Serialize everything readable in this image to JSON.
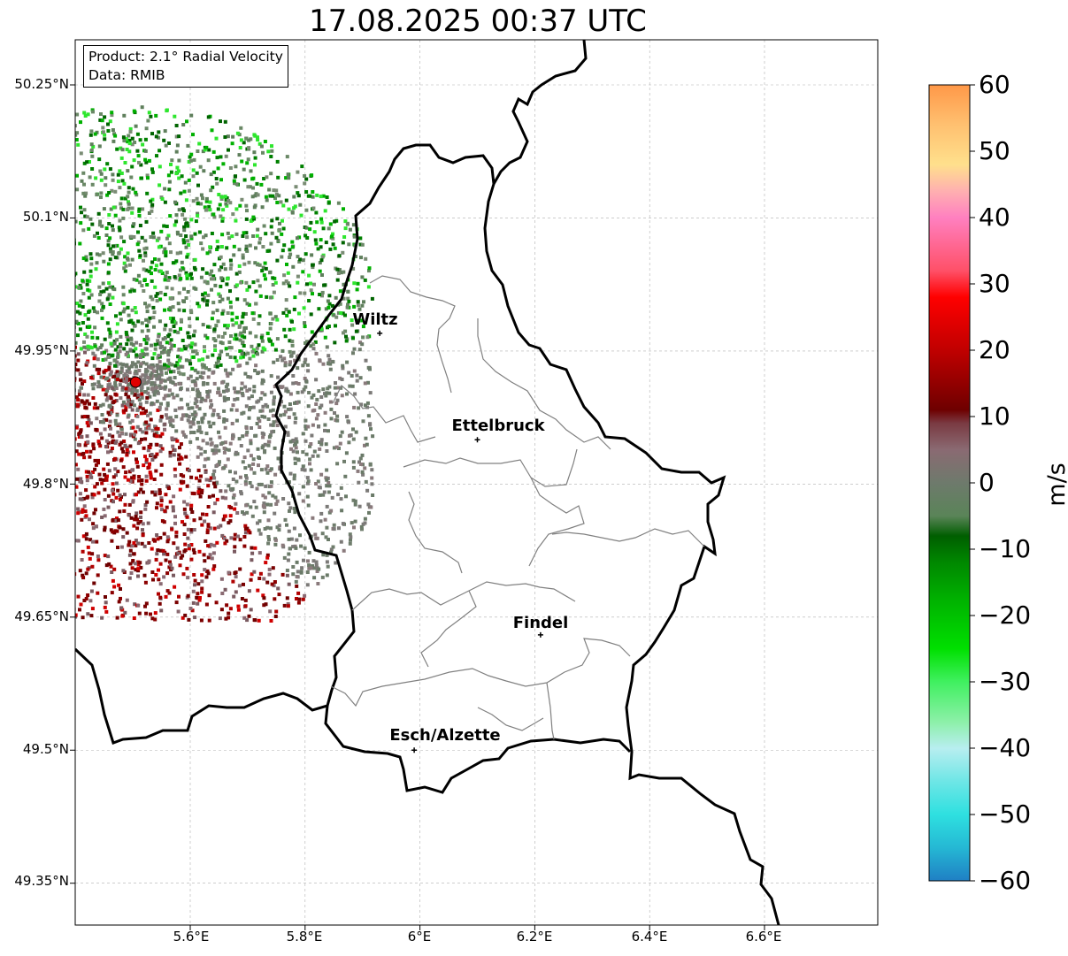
{
  "title": "17.08.2025 00:37 UTC",
  "info_box": {
    "product": "Product: 2.1° Radial Velocity",
    "data": "Data: RMIB"
  },
  "lat_labels": [
    "50.25°N",
    "50.1°N",
    "49.95°N",
    "49.8°N",
    "49.65°N",
    "49.5°N",
    "49.35°N"
  ],
  "lon_labels": [
    "5.6°E",
    "5.8°E",
    "6°E",
    "6.2°E",
    "6.4°E",
    "6.6°E"
  ],
  "cities": [
    {
      "name": "Wiltz",
      "lon": 5.93,
      "lat": 49.97
    },
    {
      "name": "Ettelbruck",
      "lon": 6.1,
      "lat": 49.85
    },
    {
      "name": "Findel",
      "lon": 6.21,
      "lat": 49.63
    },
    {
      "name": "Esch/Alzette",
      "lon": 5.99,
      "lat": 49.5
    }
  ],
  "radar_site": {
    "lon": 5.505,
    "lat": 49.915
  },
  "colorbar": {
    "unit": "m/s",
    "min": -60,
    "max": 60,
    "ticks": [
      "60",
      "50",
      "40",
      "30",
      "20",
      "10",
      "0",
      "−10",
      "−20",
      "−30",
      "−40",
      "−50",
      "−60"
    ],
    "stops": [
      [
        "#1f7fc4",
        -60
      ],
      [
        "#25b8d4",
        -55
      ],
      [
        "#2ee0e0",
        -50
      ],
      [
        "#6ee6e6",
        -45
      ],
      [
        "#b8eef0",
        -40
      ],
      [
        "#8cf0a8",
        -36
      ],
      [
        "#40f060",
        -30
      ],
      [
        "#00e000",
        -25
      ],
      [
        "#00b400",
        -18
      ],
      [
        "#008800",
        -12
      ],
      [
        "#005e00",
        -8
      ],
      [
        "#5a8458",
        -5
      ],
      [
        "#6e7a6c",
        0
      ],
      [
        "#8a6a72",
        5
      ],
      [
        "#7a3a42",
        9
      ],
      [
        "#6e0000",
        11
      ],
      [
        "#c00000",
        20
      ],
      [
        "#ff0000",
        28
      ],
      [
        "#ff5068",
        32
      ],
      [
        "#ff80c0",
        40
      ],
      [
        "#ffb0b0",
        44
      ],
      [
        "#ffe08c",
        48
      ],
      [
        "#ffc070",
        54
      ],
      [
        "#ff9848",
        60
      ]
    ]
  },
  "colors": {
    "border": "#000000",
    "cantons": "#808080",
    "grid": "#b0b0b0",
    "radar_dot": "#e00000"
  }
}
